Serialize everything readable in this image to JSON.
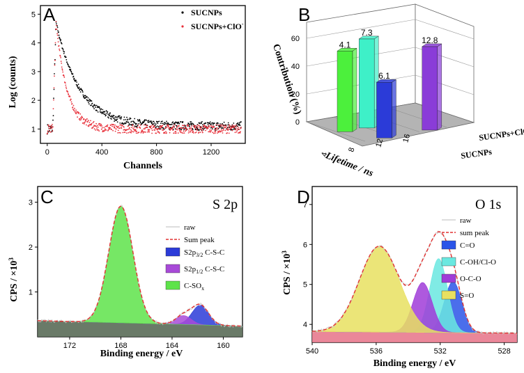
{
  "chart_data": [
    {
      "panel": "A",
      "type": "scatter",
      "xlabel": "Channels",
      "ylabel": "Log (counts)",
      "xlim": [
        -50,
        1450
      ],
      "ylim": [
        0.5,
        5.3
      ],
      "xticks": [
        "0",
        "400",
        "800",
        "1200"
      ],
      "xtick_values": [
        0,
        400,
        800,
        1200
      ],
      "yticks": [
        "1",
        "2",
        "3",
        "4",
        "5"
      ],
      "ytick_values": [
        1,
        2,
        3,
        4,
        5
      ],
      "legend": {
        "position": "top-right"
      },
      "series": [
        {
          "name": "SUCNPs",
          "color": "#000000",
          "peak_x": 65,
          "peak_y": 4.7,
          "decay_tau": 170,
          "baseline": 1.1
        },
        {
          "name": "SUCNPs+ClO",
          "name_superscript": "-",
          "color": "#e8303a",
          "peak_x": 65,
          "peak_y": 4.7,
          "decay_tau": 80,
          "baseline": 1.0
        }
      ]
    },
    {
      "panel": "B",
      "type": "bar3d",
      "xlabel": "Lifetime / ns",
      "ylabel": "Contribution (%)",
      "xticks": [
        "4",
        "8",
        "12",
        "16"
      ],
      "zticks": [
        "0",
        "20",
        "40",
        "60"
      ],
      "zlim": [
        0,
        70
      ],
      "depth_labels": [
        "SUCNPs+ClO",
        "SUCNPs"
      ],
      "depth_superscript": "-",
      "bars": [
        {
          "label": "6.1",
          "lifetime": 6.1,
          "value": 40,
          "color": "#2b3bd8",
          "depth": "SUCNPs"
        },
        {
          "label": "4.1",
          "lifetime": 4.1,
          "value": 58,
          "color": "#4cf03c",
          "depth": "SUCNPs+ClO"
        },
        {
          "label": "7.3",
          "lifetime": 7.3,
          "value": 64,
          "color": "#3ef0c8",
          "depth": "SUCNPs+ClO"
        },
        {
          "label": "12.8",
          "lifetime": 12.8,
          "value": 60,
          "color": "#8a3cd8",
          "depth": "SUCNPs"
        }
      ]
    },
    {
      "panel": "C",
      "type": "area",
      "title": "S 2p",
      "xlabel": "Binding energy / eV",
      "ylabel": "CPS / ×10",
      "ylabel_superscript": "3",
      "xlim": [
        174.5,
        158.5
      ],
      "ylim": [
        0.0,
        3.35
      ],
      "xticks": [
        "172",
        "168",
        "164",
        "160"
      ],
      "xtick_values": [
        172,
        168,
        164,
        160
      ],
      "yticks": [
        "1",
        "2",
        "3"
      ],
      "ytick_values": [
        1,
        2,
        3
      ],
      "background": {
        "y_left": 0.36,
        "y_right": 0.24,
        "color": "#5a6b58"
      },
      "peaks": [
        {
          "name": "S2p",
          "sub": "3/2",
          "suffix": " C-S-C",
          "center": 161.8,
          "height": 0.44,
          "width": 0.65,
          "color": "#2b3bd8"
        },
        {
          "name": "S2p",
          "sub": "1/2",
          "suffix": " C-S-C",
          "center": 163.1,
          "height": 0.2,
          "width": 0.6,
          "color": "#a84ad8"
        },
        {
          "name": "C-SO",
          "sub": "x",
          "suffix": "",
          "center": 168.0,
          "height": 2.6,
          "width": 0.95,
          "color": "#5ee34a"
        }
      ],
      "legend_lines": [
        {
          "name": "raw",
          "color": "#bbbbbb"
        },
        {
          "name": "Sum peak",
          "color": "#e23030"
        }
      ]
    },
    {
      "panel": "D",
      "type": "area",
      "title": "O 1s",
      "xlabel": "Binding energy / eV",
      "ylabel": "CPS / ×10",
      "ylabel_superscript": "3",
      "xlim": [
        540,
        527.2
      ],
      "ylim": [
        3.55,
        7.45
      ],
      "xticks": [
        "540",
        "536",
        "532",
        "528"
      ],
      "xtick_values": [
        540,
        536,
        532,
        528
      ],
      "yticks": [
        "4",
        "5",
        "6",
        "7"
      ],
      "ytick_values": [
        4,
        5,
        6,
        7
      ],
      "background": {
        "y_left": 3.82,
        "y_right": 3.78,
        "color": "#e87a8e"
      },
      "peaks": [
        {
          "name": "C=O",
          "center": 531.2,
          "height": 1.28,
          "width": 0.55,
          "color": "#2b55e8"
        },
        {
          "name": "C-OH/Cl-O",
          "center": 532.1,
          "height": 1.85,
          "width": 0.55,
          "color": "#6ae8e0"
        },
        {
          "name": "O-C-O",
          "center": 533.1,
          "height": 1.25,
          "width": 0.6,
          "color": "#a03cd8"
        },
        {
          "name": "S=O",
          "center": 535.8,
          "height": 2.15,
          "width": 1.25,
          "color": "#e8e060"
        }
      ],
      "legend_lines": [
        {
          "name": "raw",
          "color": "#bbbbbb"
        },
        {
          "name": "sum peak",
          "color": "#e23030"
        }
      ]
    }
  ]
}
